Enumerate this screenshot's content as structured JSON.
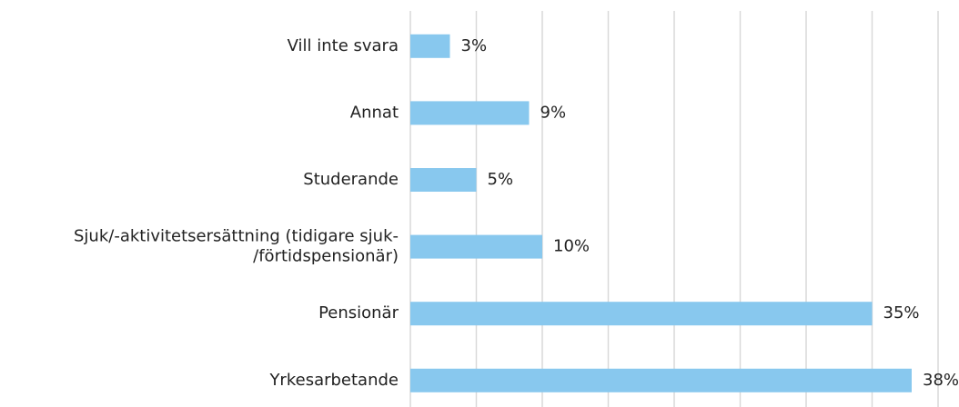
{
  "chart_data": {
    "type": "bar",
    "orientation": "horizontal",
    "categories": [
      "Vill inte svara",
      "Annat",
      "Studerande",
      "Sjuk/-aktivitetsersättning (tidigare sjuk-\n/förtidspensionär)",
      "Pensionär",
      "Yrkesarbetande"
    ],
    "values": [
      3,
      9,
      5,
      10,
      35,
      38
    ],
    "value_labels": [
      "3%",
      "9%",
      "5%",
      "10%",
      "35%",
      "38%"
    ],
    "color": "#88c8ee",
    "xlim": [
      0,
      40
    ],
    "xticks": [
      0,
      5,
      10,
      15,
      20,
      25,
      30,
      35,
      40
    ],
    "grid": true
  }
}
